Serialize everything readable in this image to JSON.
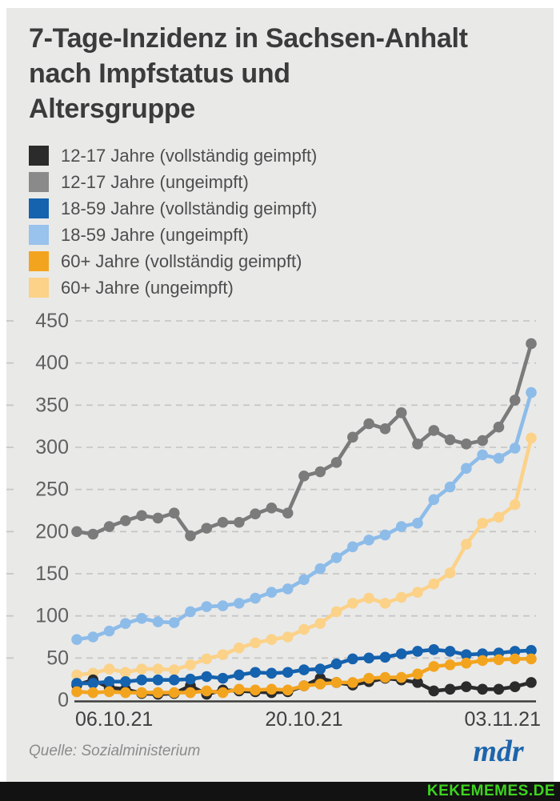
{
  "header": {
    "title_lines": [
      "7-Tage-Inzidenz in Sachsen-Anhalt",
      "nach Impfstatus und",
      "Altersgruppe"
    ]
  },
  "legend": {
    "items": [
      {
        "label": "12-17 Jahre (vollständig geimpft)",
        "color": "#2b2b2b"
      },
      {
        "label": "12-17 Jahre (ungeimpft)",
        "color": "#8a8a8a"
      },
      {
        "label": "18-59 Jahre (vollständig geimpft)",
        "color": "#1562ae"
      },
      {
        "label": "18-59 Jahre (ungeimpft)",
        "color": "#99c2ec"
      },
      {
        "label": "60+ Jahre (vollständig geimpft)",
        "color": "#f3a41f"
      },
      {
        "label": "60+ Jahre (ungeimpft)",
        "color": "#fbd288"
      }
    ]
  },
  "chart_data": {
    "type": "line",
    "n_points": 29,
    "ylim": [
      0,
      450
    ],
    "yticks": [
      0,
      50,
      100,
      150,
      200,
      250,
      300,
      350,
      400,
      450
    ],
    "grid": "horizontal-dashed",
    "legend_position": "top-left",
    "xlabel": "",
    "ylabel": "",
    "x_ticks": [
      {
        "index": 0,
        "label": "06.10.21",
        "anchor": "start"
      },
      {
        "index": 14,
        "label": "20.10.21",
        "anchor": "middle"
      },
      {
        "index": 28,
        "label": "03.11.21",
        "anchor": "end"
      }
    ],
    "series": [
      {
        "name": "12-17 Jahre (vollständig geimpft)",
        "color": "#2b2b2b",
        "z": 4,
        "values": [
          18,
          24,
          15,
          13,
          8,
          7,
          8,
          17,
          7,
          12,
          11,
          10,
          9,
          10,
          17,
          26,
          21,
          18,
          22,
          26,
          24,
          21,
          11,
          13,
          16,
          13,
          13,
          16,
          21
        ]
      },
      {
        "name": "12-17 Jahre (ungeimpft)",
        "color": "#7b7b7b",
        "z": 1,
        "values": [
          200,
          197,
          206,
          213,
          219,
          216,
          222,
          195,
          204,
          211,
          211,
          221,
          228,
          222,
          266,
          271,
          282,
          312,
          328,
          322,
          341,
          304,
          320,
          309,
          304,
          308,
          324,
          356,
          423
        ]
      },
      {
        "name": "18-59 Jahre (vollständig geimpft)",
        "color": "#1562ae",
        "z": 5,
        "values": [
          20,
          20,
          22,
          22,
          24,
          24,
          24,
          25,
          28,
          26,
          30,
          33,
          32,
          33,
          36,
          37,
          43,
          49,
          50,
          51,
          55,
          58,
          60,
          58,
          54,
          55,
          56,
          58,
          59
        ]
      },
      {
        "name": "18-59 Jahre (ungeimpft)",
        "color": "#8dbce9",
        "z": 2,
        "values": [
          72,
          75,
          82,
          91,
          97,
          93,
          92,
          105,
          111,
          112,
          115,
          121,
          128,
          132,
          143,
          156,
          169,
          182,
          190,
          196,
          206,
          210,
          238,
          253,
          275,
          291,
          287,
          299,
          365
        ]
      },
      {
        "name": "60+ Jahre (vollständig geimpft)",
        "color": "#f3a41f",
        "z": 6,
        "values": [
          10,
          9,
          10,
          9,
          9,
          9,
          9,
          9,
          11,
          9,
          13,
          12,
          13,
          12,
          17,
          19,
          21,
          21,
          26,
          27,
          27,
          31,
          40,
          42,
          44,
          47,
          48,
          49,
          49
        ]
      },
      {
        "name": "60+ Jahre (ungeimpft)",
        "color": "#fbd288",
        "z": 3,
        "values": [
          30,
          32,
          37,
          33,
          37,
          37,
          36,
          42,
          49,
          54,
          62,
          68,
          72,
          75,
          84,
          91,
          105,
          115,
          121,
          115,
          122,
          128,
          138,
          151,
          185,
          210,
          217,
          232,
          311
        ]
      }
    ]
  },
  "footer": {
    "source": "Quelle: Sozialministerium",
    "logo": "mdr"
  },
  "watermark": {
    "text": "KEKEMEMES.DE"
  },
  "colors": {
    "card_bg": "#e9e9e8",
    "grid": "#c7c7c6",
    "axis": "#3c3c3c",
    "ytick_text": "#606060",
    "xtick_text": "#3f3f3f",
    "logo_blue": "#1d65ab",
    "watermark_green": "#3dd41e",
    "watermark_bg": "#121212"
  }
}
